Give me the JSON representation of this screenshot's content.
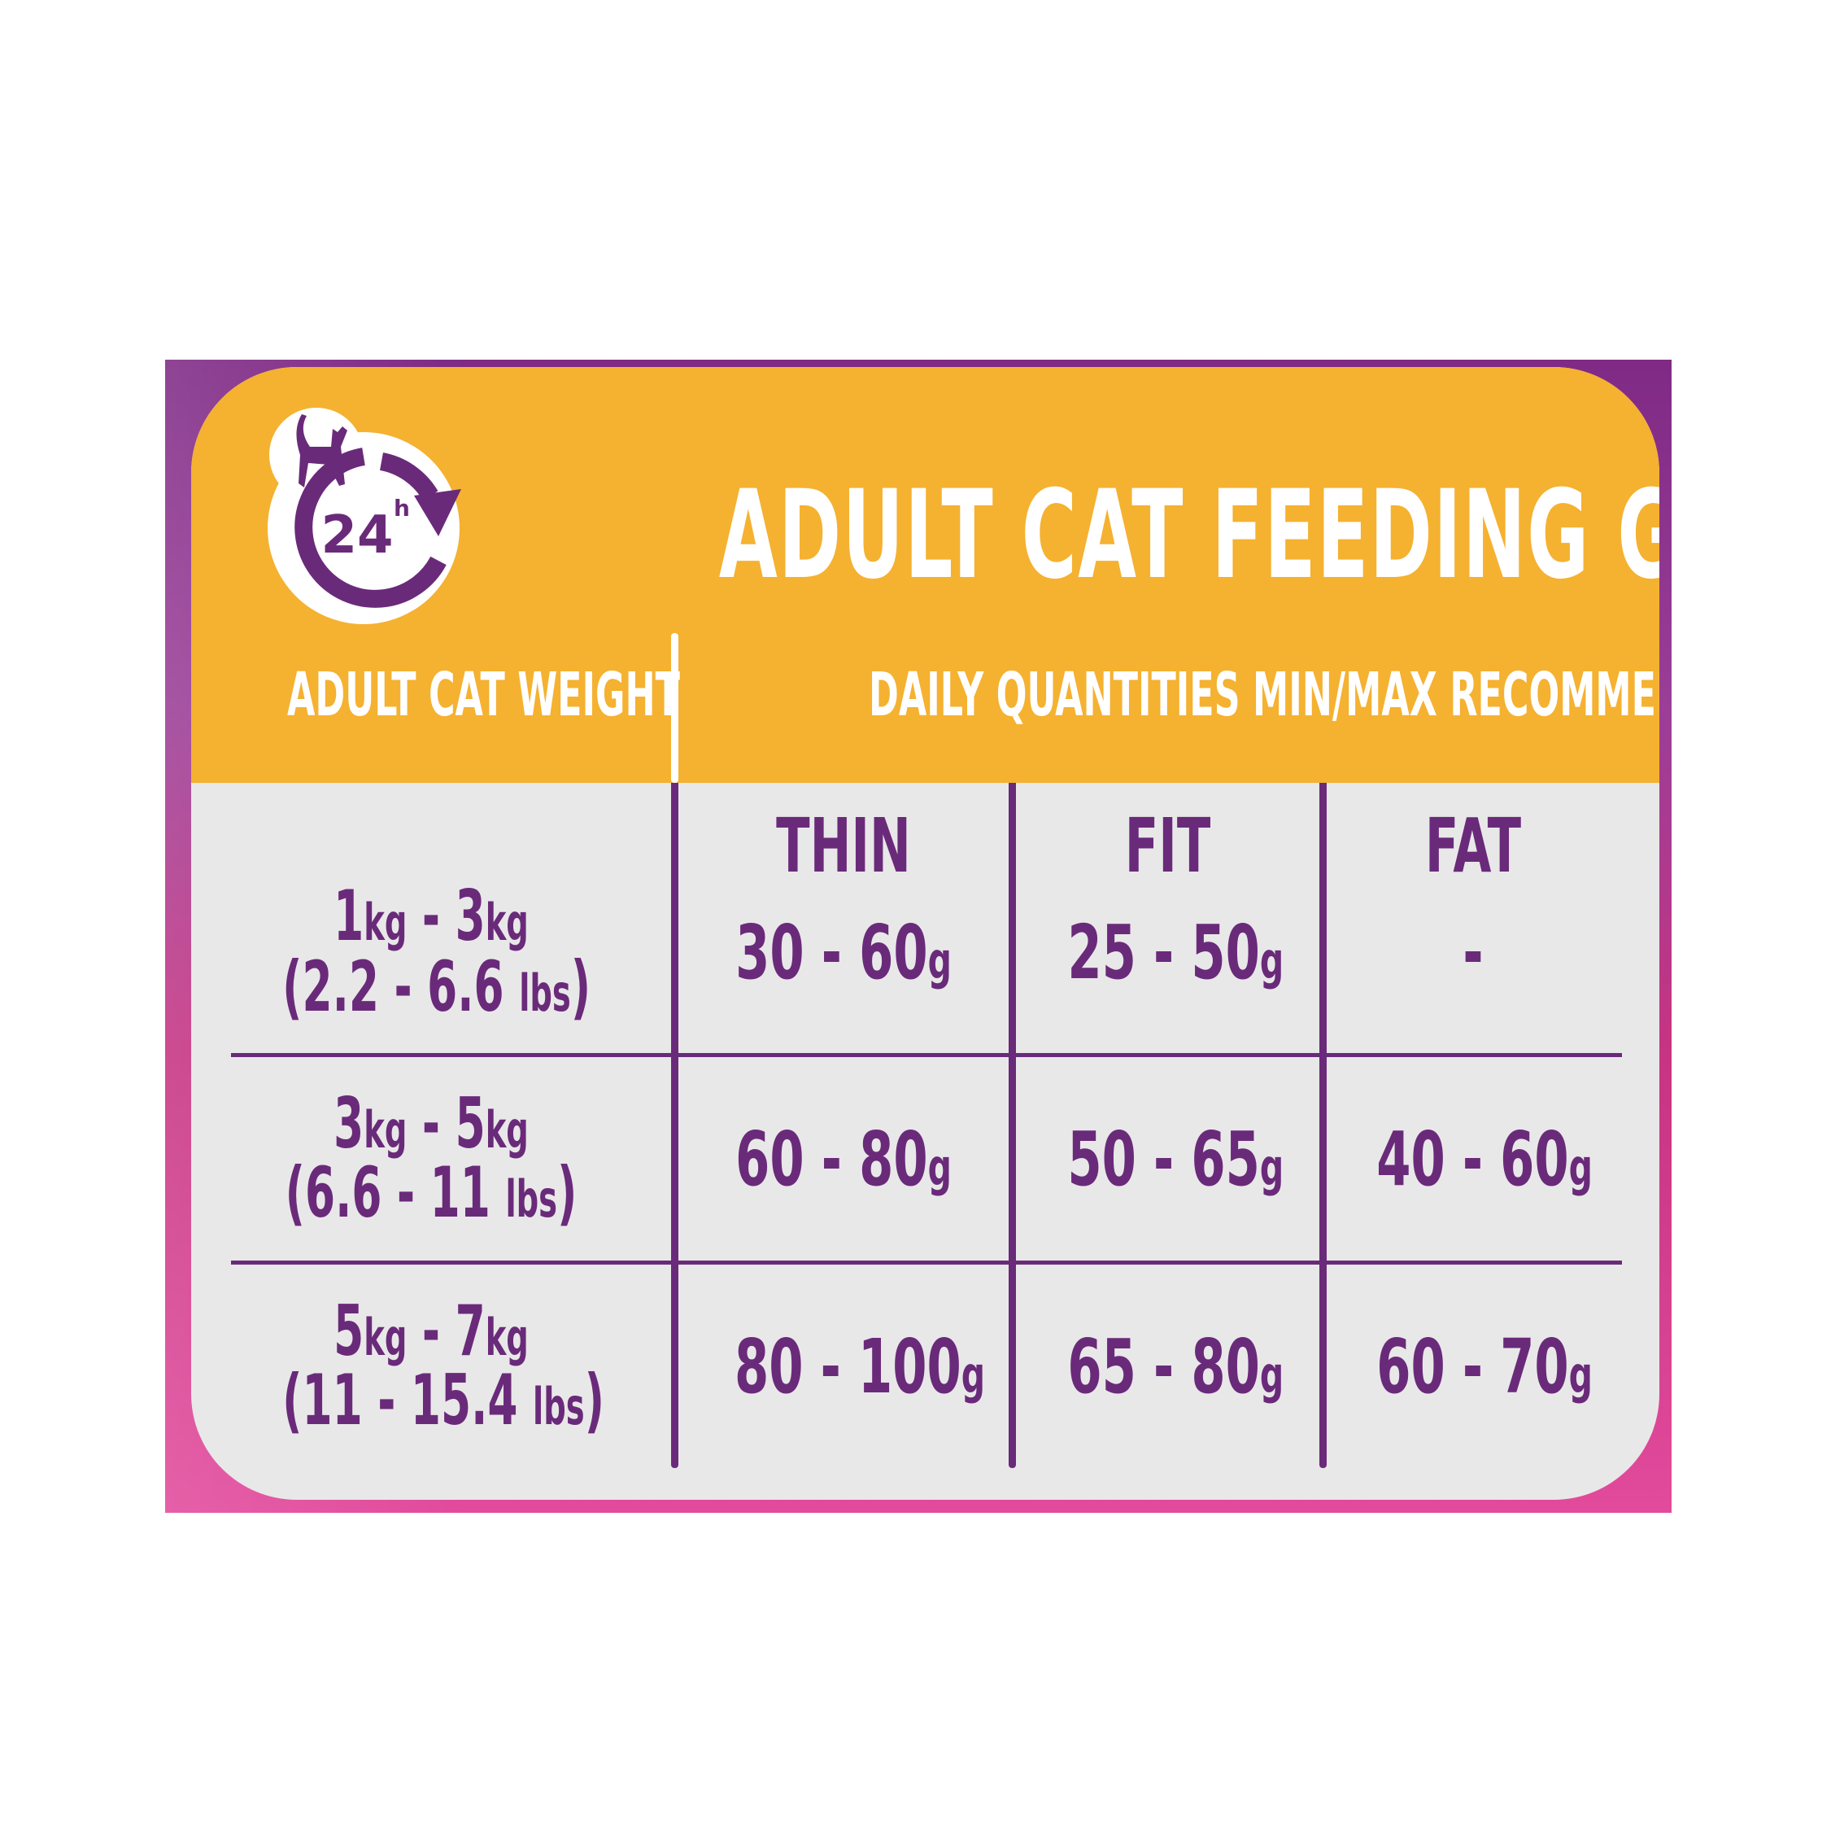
{
  "header": {
    "title": "ADULT CAT FEEDING GUIDE",
    "icon": {
      "name": "cat-24h-clock-icon",
      "text": "24",
      "superscript": "h"
    },
    "weight_col_label": "ADULT CAT WEIGHT",
    "quantities_label": "DAILY QUANTITIES MIN/MAX RECOMMENDED"
  },
  "columns": [
    "THIN",
    "FIT",
    "FAT"
  ],
  "rows": [
    {
      "kg_min": "1",
      "kg_max": "3",
      "kg_unit": "kg",
      "lbs": "(2.2 - 6.6 ",
      "lbs_unit": "lbs",
      "lbs_close": ")",
      "values": [
        {
          "v": "30 - 60",
          "u": "g"
        },
        {
          "v": "25 - 50",
          "u": "g"
        },
        {
          "v": "-",
          "u": ""
        }
      ]
    },
    {
      "kg_min": "3",
      "kg_max": "5",
      "kg_unit": "kg",
      "lbs": "(6.6 - 11 ",
      "lbs_unit": "lbs",
      "lbs_close": ")",
      "values": [
        {
          "v": "60 - 80",
          "u": "g"
        },
        {
          "v": "50 - 65",
          "u": "g"
        },
        {
          "v": "40 - 60",
          "u": "g"
        }
      ]
    },
    {
      "kg_min": "5",
      "kg_max": "7",
      "kg_unit": "kg",
      "lbs": "(11 - 15.4 ",
      "lbs_unit": "lbs",
      "lbs_close": ")",
      "values": [
        {
          "v": "80 - 100",
          "u": "g"
        },
        {
          "v": "65 - 80",
          "u": "g"
        },
        {
          "v": "60 - 70",
          "u": "g"
        }
      ]
    }
  ],
  "colors": {
    "purple": "#6a2a7a",
    "orange": "#f5b130",
    "table_bg": "#e8e8e8",
    "pink": "#e24a9c"
  }
}
